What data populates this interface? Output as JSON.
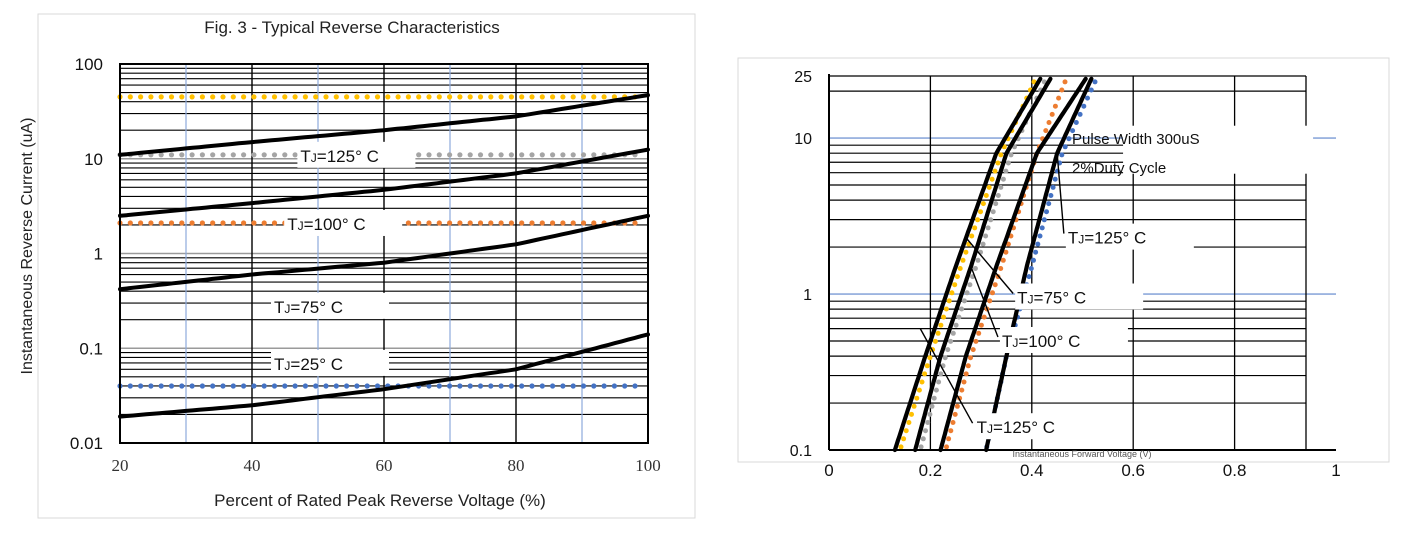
{
  "colors": {
    "curve": "#000000",
    "grid_major": "#000000",
    "grid_blue": "#8eaadb",
    "gold": "#ffc000",
    "gray": "#a5a5a5",
    "orange": "#ed7d31",
    "blue": "#4472c4"
  },
  "chart_data": [
    {
      "type": "line",
      "title": "Fig. 3 - Typical Reverse Characteristics",
      "xlabel": "Percent of Rated Peak Reverse Voltage (%)",
      "ylabel": "Instantaneous Reverse Current (uA)",
      "xscale": "linear",
      "yscale": "log",
      "xlim": [
        20,
        100
      ],
      "ylim": [
        0.01,
        100
      ],
      "xticks": [
        20,
        40,
        60,
        80,
        100
      ],
      "xtick_labels": [
        "20",
        "40",
        "60",
        "80",
        "100"
      ],
      "yticks": [
        100,
        10,
        1,
        0.1,
        0.01
      ],
      "ytick_labels": [
        "100",
        "10",
        "1",
        "0.1",
        "0.01"
      ],
      "grid": true,
      "series": [
        {
          "name": "TJ=125°C",
          "style": "solid",
          "x": [
            20,
            40,
            60,
            80,
            100
          ],
          "y": [
            11,
            15,
            20,
            28,
            47
          ]
        },
        {
          "name": "TJ=100°C",
          "style": "solid",
          "x": [
            20,
            40,
            60,
            80,
            100
          ],
          "y": [
            2.5,
            3.4,
            4.7,
            7,
            12.5
          ]
        },
        {
          "name": "TJ=75°C",
          "style": "solid",
          "x": [
            20,
            40,
            60,
            80,
            100
          ],
          "y": [
            0.42,
            0.6,
            0.8,
            1.25,
            2.5
          ]
        },
        {
          "name": "TJ=25°C",
          "style": "solid",
          "x": [
            20,
            40,
            60,
            80,
            100
          ],
          "y": [
            0.019,
            0.025,
            0.037,
            0.06,
            0.14
          ]
        },
        {
          "name": "dotted-gold",
          "style": "dotted",
          "color": "#ffc000",
          "x": [
            20,
            100
          ],
          "y": [
            45,
            45
          ]
        },
        {
          "name": "dotted-gray",
          "style": "dotted",
          "color": "#a5a5a5",
          "x": [
            20,
            100
          ],
          "y": [
            11,
            11
          ]
        },
        {
          "name": "dotted-orange",
          "style": "dotted",
          "color": "#ed7d31",
          "x": [
            20,
            100
          ],
          "y": [
            2.1,
            2.1
          ]
        },
        {
          "name": "dotted-blue",
          "style": "dotted",
          "color": "#4472c4",
          "x": [
            20,
            100
          ],
          "y": [
            0.04,
            0.04
          ]
        }
      ],
      "annotations": [
        {
          "text": "TJ=125° C",
          "x": 54,
          "y": 11
        },
        {
          "text": "TJ=100° C",
          "x": 52,
          "y": 2.1
        },
        {
          "text": "TJ=75° C",
          "x": 50,
          "y": 0.28
        },
        {
          "text": "TJ=25° C",
          "x": 50,
          "y": 0.07
        }
      ]
    },
    {
      "type": "line",
      "title": "",
      "xlabel": "Instantaneous Forward Voltage (V)",
      "ylabel": "",
      "xscale": "linear",
      "yscale": "log",
      "xlim": [
        0,
        1
      ],
      "ylim": [
        0.1,
        25
      ],
      "xticks": [
        0,
        0.2,
        0.4,
        0.6,
        0.8,
        1
      ],
      "xtick_labels": [
        "0",
        "0.2",
        "0.4",
        "0.6",
        "0.8",
        "1"
      ],
      "yticks": [
        25,
        10,
        1,
        0.1
      ],
      "ytick_labels": [
        "25",
        "10",
        "1",
        "0.1"
      ],
      "grid": true,
      "series": [
        {
          "name": "TJ=125°C (left)",
          "style": "solid",
          "x": [
            0.13,
            0.19,
            0.25,
            0.33,
            0.42
          ],
          "y": [
            0.1,
            0.4,
            1.5,
            8,
            25
          ]
        },
        {
          "name": "TJ=100°C",
          "style": "solid",
          "x": [
            0.17,
            0.22,
            0.28,
            0.35,
            0.44
          ],
          "y": [
            0.1,
            0.4,
            1.5,
            8,
            25
          ]
        },
        {
          "name": "TJ=75°C",
          "style": "solid",
          "x": [
            0.22,
            0.27,
            0.33,
            0.41,
            0.51
          ],
          "y": [
            0.1,
            0.4,
            1.5,
            8,
            25
          ]
        },
        {
          "name": "TJ=125°C (right)",
          "style": "solid",
          "x": [
            0.31,
            0.35,
            0.39,
            0.45,
            0.52
          ],
          "y": [
            0.1,
            0.4,
            1.5,
            8,
            25
          ]
        },
        {
          "name": "dotted-gold",
          "style": "dotted",
          "color": "#ffc000",
          "x": [
            0.14,
            0.2,
            0.26,
            0.34,
            0.41
          ],
          "y": [
            0.1,
            0.4,
            1.5,
            8,
            25
          ]
        },
        {
          "name": "dotted-gray",
          "style": "dotted",
          "color": "#a5a5a5",
          "x": [
            0.18,
            0.23,
            0.29,
            0.36,
            0.43
          ],
          "y": [
            0.1,
            0.4,
            1.5,
            8,
            25
          ]
        },
        {
          "name": "dotted-orange",
          "style": "dotted",
          "color": "#ed7d31",
          "x": [
            0.23,
            0.28,
            0.34,
            0.41,
            0.47
          ],
          "y": [
            0.1,
            0.4,
            1.5,
            8,
            25
          ]
        },
        {
          "name": "dotted-blue",
          "style": "dotted",
          "color": "#4472c4",
          "x": [
            0.31,
            0.35,
            0.4,
            0.46,
            0.53
          ],
          "y": [
            0.1,
            0.4,
            1.5,
            8,
            25
          ]
        }
      ],
      "annotations": [
        {
          "text": "Pulse Width 300uS",
          "x": 0.72,
          "y": 10
        },
        {
          "text": "2%Duty Cycle",
          "x": 0.72,
          "y": 6.5
        },
        {
          "text": "TJ=125° C",
          "x": 0.55,
          "y": 2.3
        },
        {
          "text": "TJ=75° C",
          "x": 0.45,
          "y": 0.95
        },
        {
          "text": "TJ=100° C",
          "x": 0.42,
          "y": 0.5
        },
        {
          "text": "TJ=125° C",
          "x": 0.37,
          "y": 0.14
        }
      ]
    }
  ]
}
